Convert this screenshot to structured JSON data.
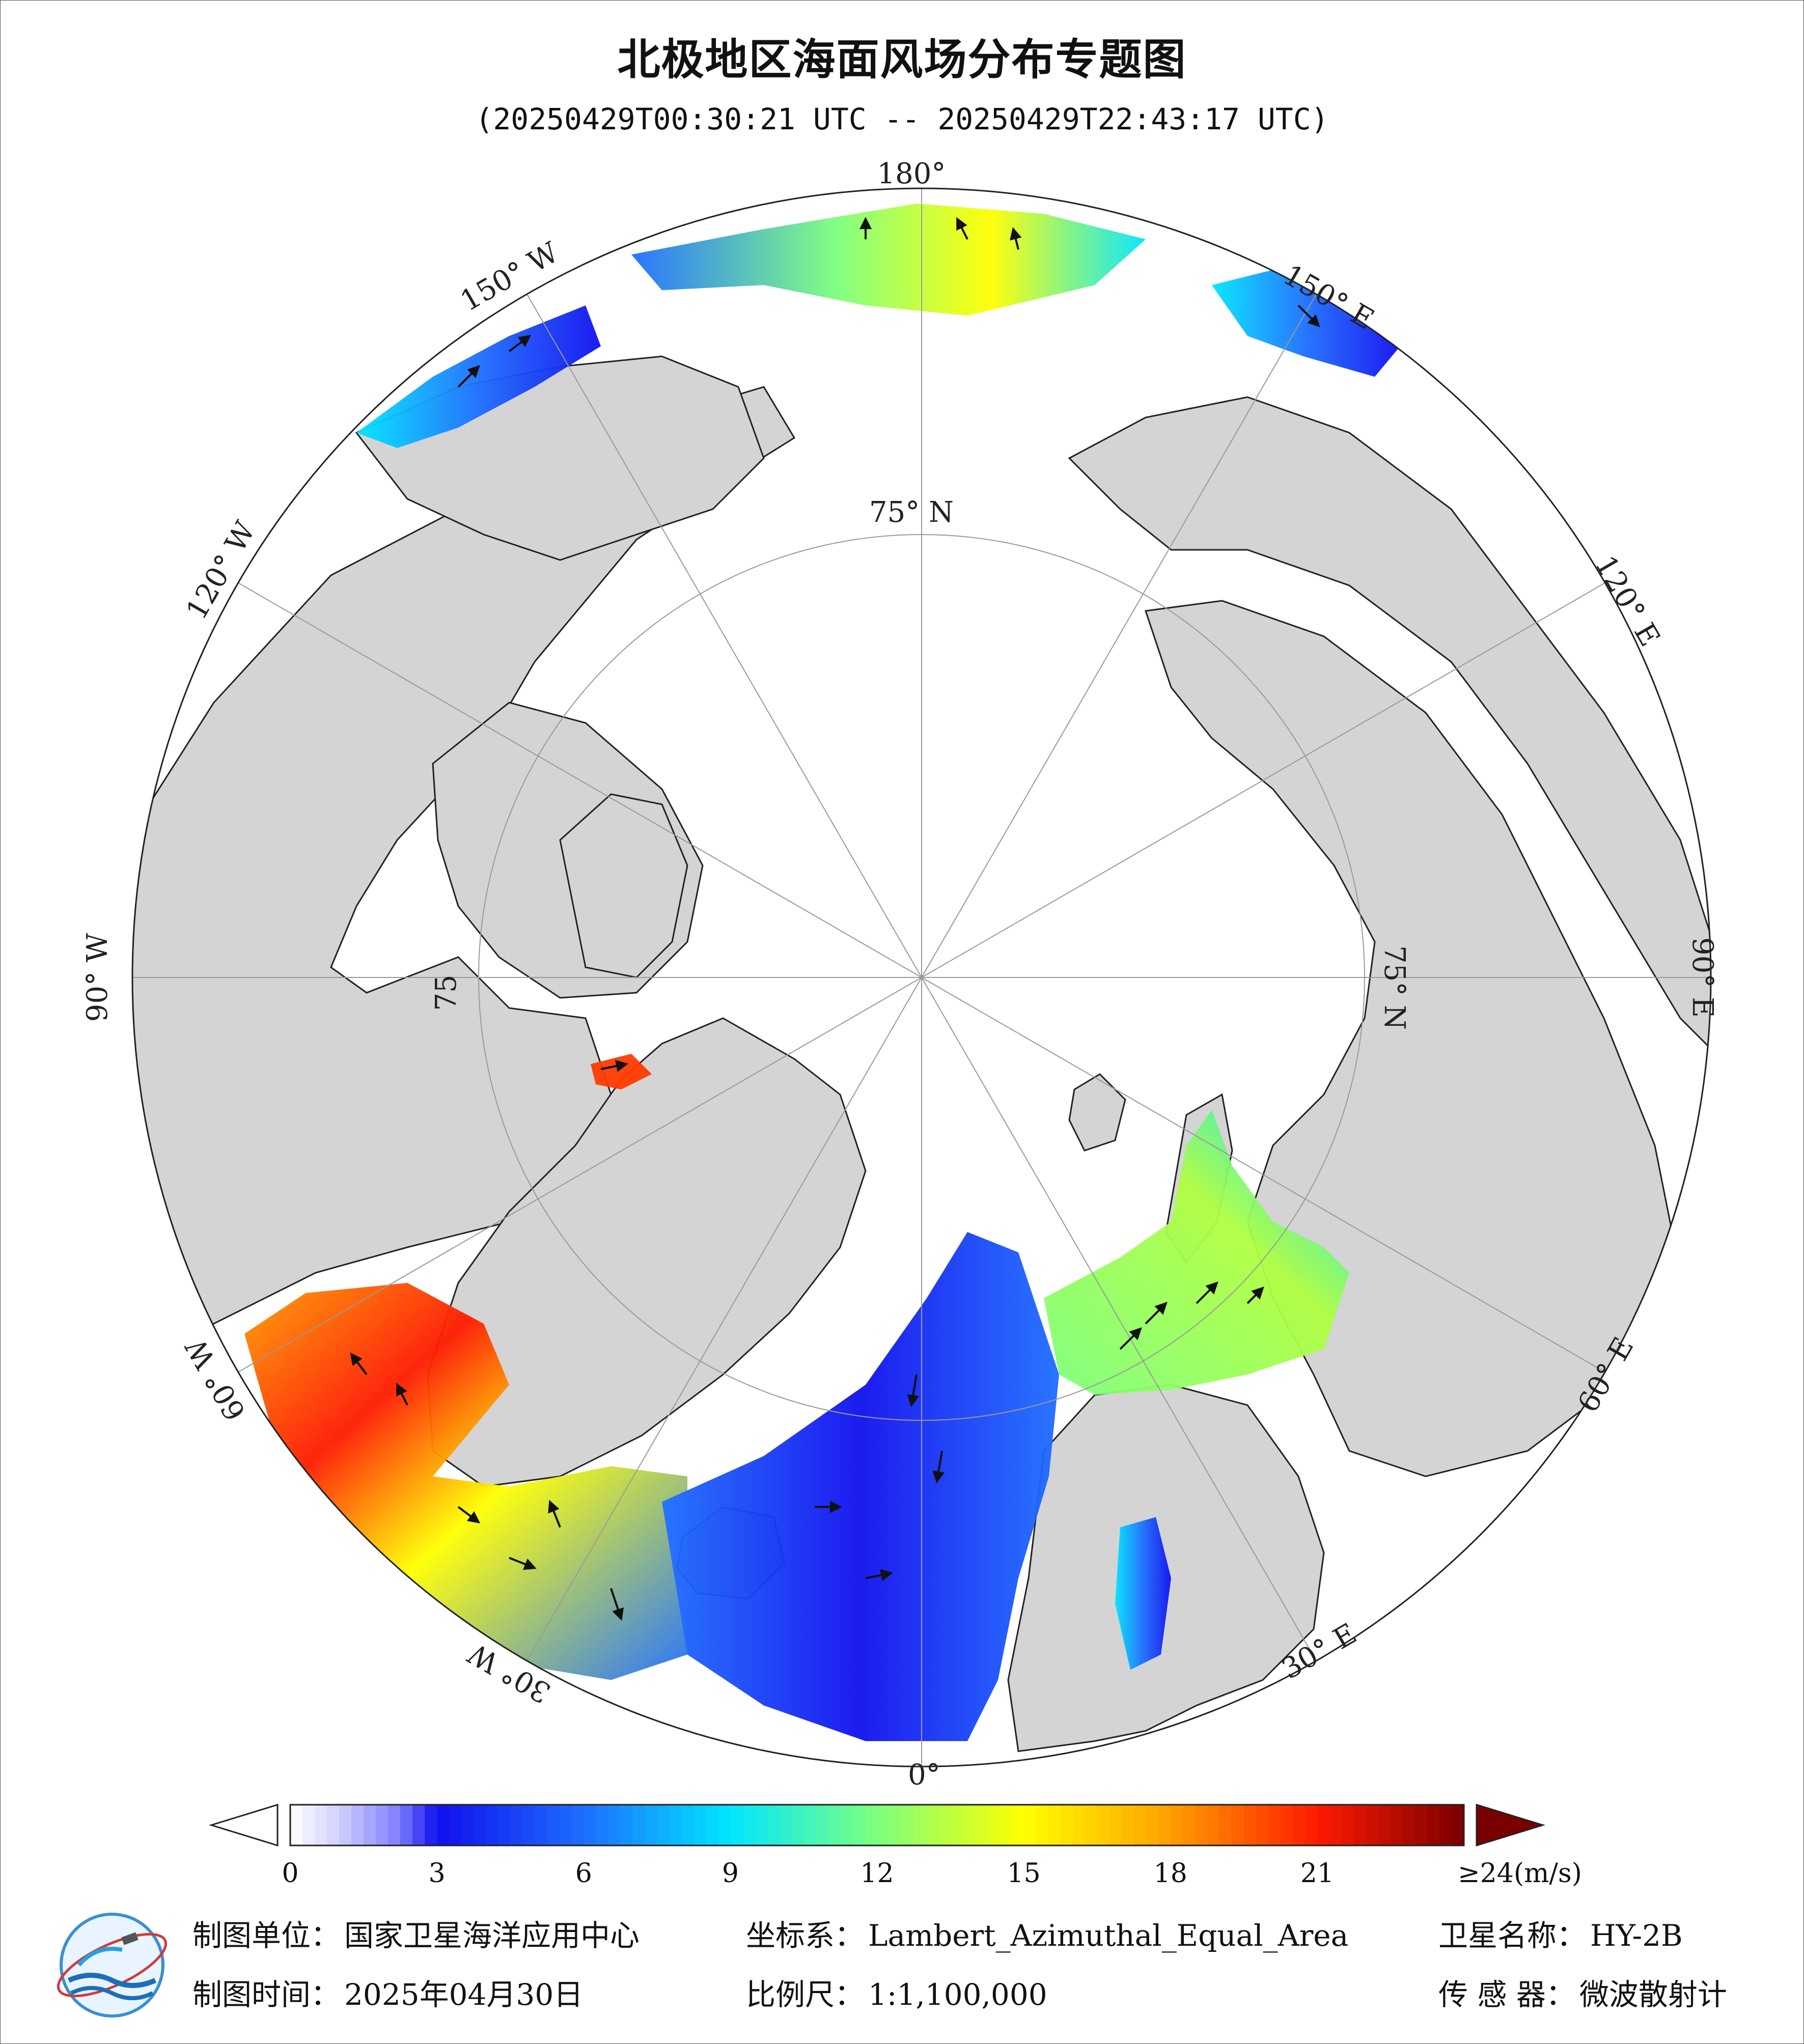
{
  "title": "北极地区海面风场分布专题图",
  "subtitle": "(20250429T00:30:21 UTC -- 20250429T22:43:17 UTC)",
  "map": {
    "projection_center": "North Pole",
    "longitude_labels": [
      "180°",
      "150° E",
      "120° E",
      "90° E",
      "60° E",
      "30° E",
      "0°",
      "30° W",
      "60° W",
      "90° W",
      "120° W",
      "150° W"
    ],
    "latitude_labels": [
      "75° N",
      "75° N",
      "75"
    ],
    "colors": {
      "land": "#d4d4d4",
      "ice_or_nodata": "#ffffff",
      "coast": "#222222",
      "grid": "#9a9a9a",
      "arrows": "#111111"
    }
  },
  "colorbar": {
    "ticks": [
      "0",
      "3",
      "6",
      "9",
      "12",
      "15",
      "18",
      "21",
      "≥24(m/s)"
    ],
    "tick_values": [
      0,
      3,
      6,
      9,
      12,
      15,
      18,
      21,
      24
    ],
    "unit": "m/s",
    "stops": [
      {
        "v": 0,
        "c": "#ffffff"
      },
      {
        "v": 1,
        "c": "#d0d0ff"
      },
      {
        "v": 2.2,
        "c": "#8080ff"
      },
      {
        "v": 3,
        "c": "#1010ee"
      },
      {
        "v": 6,
        "c": "#1e6eff"
      },
      {
        "v": 9,
        "c": "#00e6ff"
      },
      {
        "v": 12,
        "c": "#7dff7d"
      },
      {
        "v": 15,
        "c": "#ffff00"
      },
      {
        "v": 18,
        "c": "#ff9f00"
      },
      {
        "v": 21,
        "c": "#ff1a00"
      },
      {
        "v": 24,
        "c": "#7a0000"
      }
    ]
  },
  "footer": {
    "unit_label": "制图单位：",
    "unit_value": "国家卫星海洋应用中心",
    "crs_label": "坐标系：",
    "crs_value": "Lambert_Azimuthal_Equal_Area",
    "sat_label": "卫星名称：",
    "sat_value": "HY-2B",
    "date_label": "制图时间：",
    "date_value": "2025年04月30日",
    "scale_label": "比例尺：",
    "scale_value": "1:1,100,000",
    "sensor_label": "传 感 器：",
    "sensor_value": "微波散射计"
  }
}
